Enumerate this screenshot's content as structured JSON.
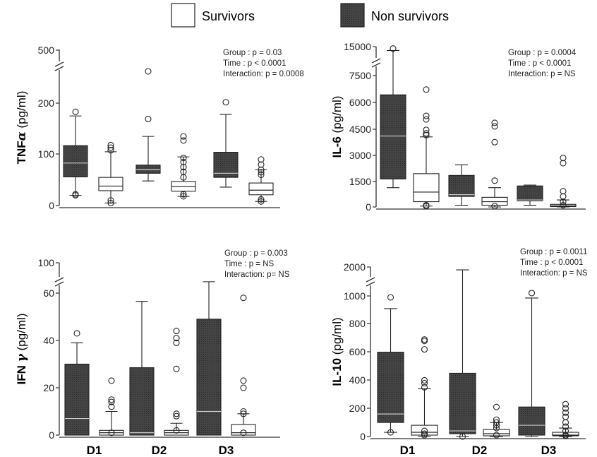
{
  "legend": {
    "survivors_label": "Survivors",
    "nonsurvivors_label": "Non survivors"
  },
  "colors": {
    "nonsurvivor_fill": "#3d3d3d",
    "survivor_fill": "#ffffff",
    "stroke": "#222222"
  },
  "chart_data": [
    {
      "id": "tnf",
      "type": "box",
      "ylabel_main": "TNF",
      "ylabel_symbol": "α",
      "ylabel_unit": " (pg/ml)",
      "ytick_labels": [
        "0",
        "100",
        "200",
        "500"
      ],
      "stats_lines": [
        "Group : p = 0.03",
        "Time : p  < 0.0001",
        "Interaction: p = 0.0008"
      ],
      "categories": [
        "D1",
        "D2",
        "D3"
      ],
      "series": [
        {
          "name": "Non survivors",
          "boxes": [
            {
              "whisker_low": 20,
              "q1": 56,
              "median": 83,
              "q3": 117,
              "whisker_high": 175,
              "outliers": [
                20,
                22,
                183
              ]
            },
            {
              "whisker_low": 48,
              "q1": 63,
              "median": 70,
              "q3": 79,
              "whisker_high": 135,
              "outliers": [
                169,
                380
              ]
            },
            {
              "whisker_low": 36,
              "q1": 55,
              "median": 63,
              "q3": 104,
              "whisker_high": 178,
              "outliers": [
                205
              ]
            }
          ]
        },
        {
          "name": "Survivors",
          "boxes": [
            {
              "whisker_low": 5,
              "q1": 29,
              "median": 38,
              "q3": 55,
              "whisker_high": 105,
              "outliers": [
                5,
                10,
                108,
                113,
                118
              ]
            },
            {
              "whisker_low": 18,
              "q1": 28,
              "median": 37,
              "q3": 47,
              "whisker_high": 95,
              "outliers": [
                18,
                22,
                55,
                66,
                75,
                85,
                93,
                127,
                135
              ]
            },
            {
              "whisker_low": 8,
              "q1": 21,
              "median": 30,
              "q3": 44,
              "whisker_high": 70,
              "outliers": [
                8,
                12,
                60,
                65,
                70,
                80,
                90
              ]
            }
          ]
        }
      ]
    },
    {
      "id": "il6",
      "type": "box",
      "ylabel_main": "IL-6",
      "ylabel_symbol": "",
      "ylabel_unit": " (pg/ml)",
      "ytick_labels": [
        "0",
        "1500",
        "3000",
        "4500",
        "6000",
        "7500",
        "15000"
      ],
      "stats_lines": [
        "Group : p = 0.0004",
        "Time : p  < 0.0001",
        "Interaction: p = NS"
      ],
      "categories": [
        "D1",
        "D2",
        "D3"
      ],
      "series": [
        {
          "name": "Non survivors",
          "boxes": [
            {
              "whisker_low": 1100,
              "q1": 1600,
              "median": 4050,
              "q3": 6400,
              "whisker_high": 14000,
              "outliers": [
                14500
              ]
            },
            {
              "whisker_low": 100,
              "q1": 600,
              "median": 700,
              "q3": 1800,
              "whisker_high": 2400,
              "outliers": []
            },
            {
              "whisker_low": 100,
              "q1": 350,
              "median": 400,
              "q3": 1200,
              "whisker_high": 1250,
              "outliers": []
            }
          ]
        },
        {
          "name": "Survivors",
          "boxes": [
            {
              "whisker_low": 50,
              "q1": 300,
              "median": 850,
              "q3": 1900,
              "whisker_high": 4000,
              "outliers": [
                50,
                100,
                4100,
                4200,
                4400,
                5000,
                5200,
                6700
              ]
            },
            {
              "whisker_low": 0,
              "q1": 100,
              "median": 300,
              "q3": 550,
              "whisker_high": 1100,
              "outliers": [
                50,
                1500,
                3700,
                4600,
                4800
              ]
            },
            {
              "whisker_low": 0,
              "q1": 20,
              "median": 60,
              "q3": 150,
              "whisker_high": 400,
              "outliers": [
                100,
                300,
                600,
                900,
                2500,
                2800
              ]
            }
          ]
        }
      ]
    },
    {
      "id": "ifn",
      "type": "box",
      "ylabel_main": "IFN ",
      "ylabel_symbol": "γ",
      "ylabel_unit": " (pg/ml)",
      "ytick_labels": [
        "0",
        "20",
        "40",
        "60",
        "100"
      ],
      "stats_lines": [
        "Group : p = 0.003",
        "Time : p = NS",
        "Interaction: p= NS"
      ],
      "categories": [
        "D1",
        "D2",
        "D3"
      ],
      "series": [
        {
          "name": "Non survivors",
          "boxes": [
            {
              "whisker_low": 0,
              "q1": 0,
              "median": 7,
              "q3": 30,
              "whisker_high": 39,
              "outliers": [
                43
              ]
            },
            {
              "whisker_low": 0,
              "q1": 0,
              "median": 1,
              "q3": 28.5,
              "whisker_high": 56.5,
              "outliers": []
            },
            {
              "whisker_low": 0,
              "q1": 0,
              "median": 10,
              "q3": 49,
              "whisker_high": 75,
              "outliers": []
            }
          ]
        },
        {
          "name": "Survivors",
          "boxes": [
            {
              "whisker_low": 0,
              "q1": 0,
              "median": 1,
              "q3": 2,
              "whisker_high": 10,
              "outliers": [
                1,
                12,
                14,
                15,
                23
              ]
            },
            {
              "whisker_low": 0,
              "q1": 0,
              "median": 1,
              "q3": 2,
              "whisker_high": 5,
              "outliers": [
                2,
                8,
                9,
                28,
                39,
                41,
                44
              ]
            },
            {
              "whisker_low": 0,
              "q1": 0,
              "median": 1,
              "q3": 4.5,
              "whisker_high": 9,
              "outliers": [
                1,
                9,
                10,
                20,
                23,
                58
              ]
            }
          ]
        }
      ]
    },
    {
      "id": "il10",
      "type": "box",
      "ylabel_main": "IL-10",
      "ylabel_symbol": "",
      "ylabel_unit": " (pg/ml)",
      "ytick_labels": [
        "0",
        "200",
        "400",
        "600",
        "800",
        "1000",
        "2000"
      ],
      "stats_lines": [
        "Group : p = 0.0011",
        "Time : p  < 0.0001",
        "Interaction: p = NS"
      ],
      "categories": [
        "D1",
        "D2",
        "D3"
      ],
      "series": [
        {
          "name": "Non survivors",
          "boxes": [
            {
              "whisker_low": 30,
              "q1": 100,
              "median": 160,
              "q3": 600,
              "whisker_high": 910,
              "outliers": [
                30,
                990
              ]
            },
            {
              "whisker_low": 0,
              "q1": 20,
              "median": 40,
              "q3": 450,
              "whisker_high": 1900,
              "outliers": [
                0
              ]
            },
            {
              "whisker_low": 0,
              "q1": 10,
              "median": 80,
              "q3": 210,
              "whisker_high": 985,
              "outliers": [
                1100
              ]
            }
          ]
        },
        {
          "name": "Survivors",
          "boxes": [
            {
              "whisker_low": 0,
              "q1": 10,
              "median": 30,
              "q3": 80,
              "whisker_high": 340,
              "outliers": [
                10,
                20,
                40,
                350,
                380,
                400,
                620,
                680,
                690
              ]
            },
            {
              "whisker_low": 0,
              "q1": 5,
              "median": 20,
              "q3": 50,
              "whisker_high": 100,
              "outliers": [
                10,
                60,
                80,
                100,
                120,
                210
              ]
            },
            {
              "whisker_low": 0,
              "q1": 5,
              "median": 10,
              "q3": 30,
              "whisker_high": 60,
              "outliers": [
                5,
                10,
                40,
                70,
                100,
                140,
                170,
                200,
                230
              ]
            }
          ]
        }
      ]
    }
  ]
}
